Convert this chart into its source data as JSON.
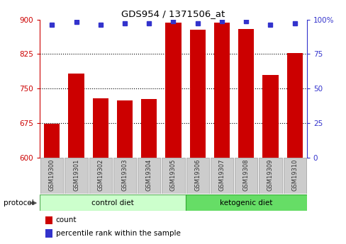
{
  "title": "GDS954 / 1371506_at",
  "samples": [
    "GSM19300",
    "GSM19301",
    "GSM19302",
    "GSM19303",
    "GSM19304",
    "GSM19305",
    "GSM19306",
    "GSM19307",
    "GSM19308",
    "GSM19309",
    "GSM19310"
  ],
  "counts": [
    673,
    783,
    728,
    724,
    727,
    893,
    878,
    893,
    880,
    780,
    827
  ],
  "percentiles": [
    96,
    98,
    96,
    97,
    97,
    99,
    97,
    99,
    99,
    96,
    97
  ],
  "ylim_left": [
    600,
    900
  ],
  "ylim_right": [
    0,
    100
  ],
  "yticks_left": [
    600,
    675,
    750,
    825,
    900
  ],
  "yticks_right": [
    0,
    25,
    50,
    75,
    100
  ],
  "ytick_right_labels": [
    "0",
    "25",
    "50",
    "75",
    "100%"
  ],
  "bar_color": "#cc0000",
  "dot_color": "#3333cc",
  "control_label": "control diet",
  "ketogenic_label": "ketogenic diet",
  "protocol_label": "protocol",
  "legend_count": "count",
  "legend_percentile": "percentile rank within the sample",
  "bg_control": "#ccffcc",
  "bg_ketogenic": "#66dd66",
  "bar_width": 0.65
}
